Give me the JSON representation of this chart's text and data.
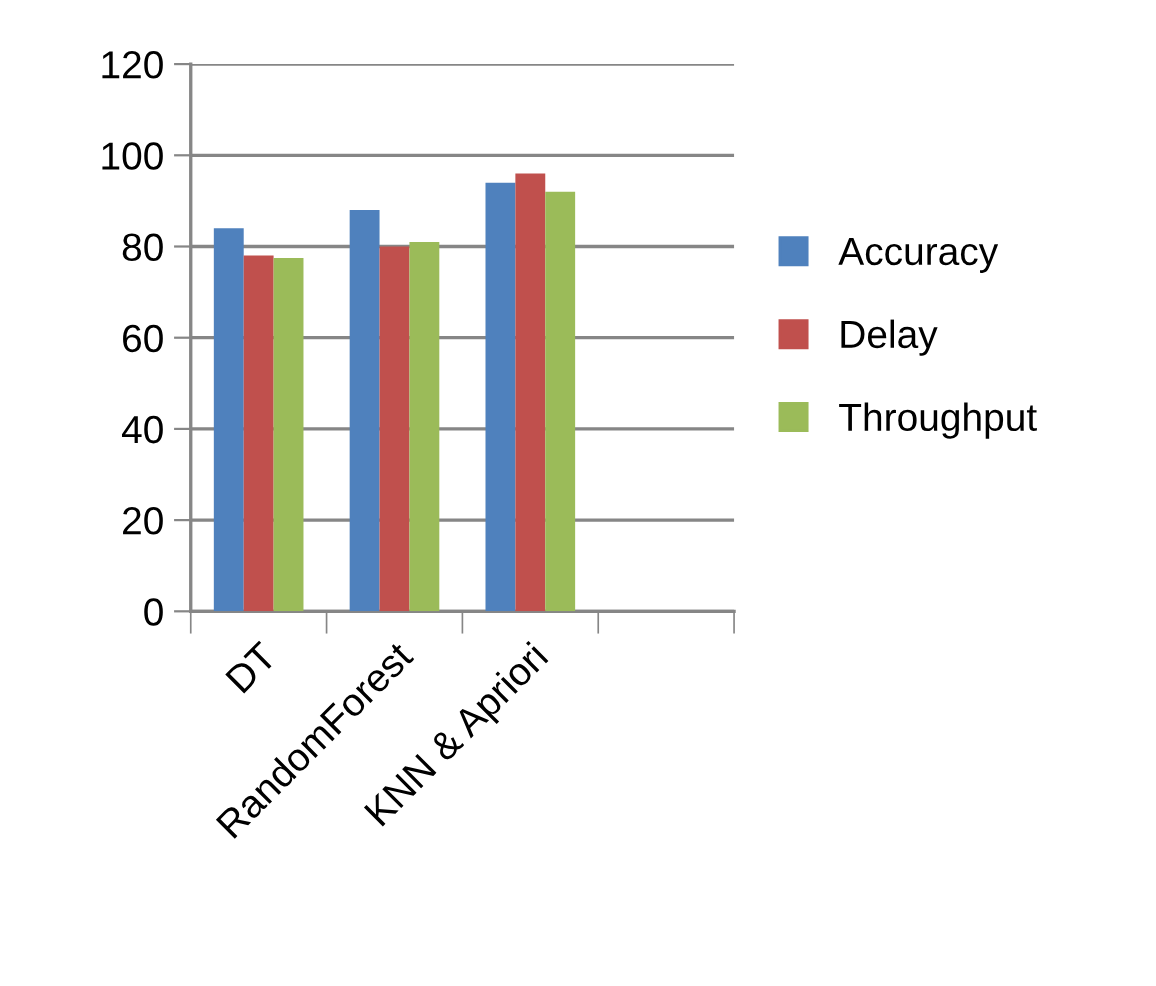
{
  "chart_data": {
    "type": "bar",
    "categories": [
      "DT",
      "RandomForest",
      "KNN & Apriori",
      null
    ],
    "series": [
      {
        "name": "Accuracy",
        "color": "#4f81bd",
        "values": [
          84,
          88,
          94,
          null
        ]
      },
      {
        "name": "Delay",
        "color": "#c0504d",
        "values": [
          78,
          80,
          96,
          null
        ]
      },
      {
        "name": "Throughput",
        "color": "#9bbb59",
        "values": [
          77.5,
          81,
          92,
          null
        ]
      }
    ],
    "ylim": [
      0,
      120
    ],
    "yticks": [
      0,
      20,
      40,
      60,
      80,
      100,
      120
    ],
    "grid": "y",
    "legend": "right"
  }
}
